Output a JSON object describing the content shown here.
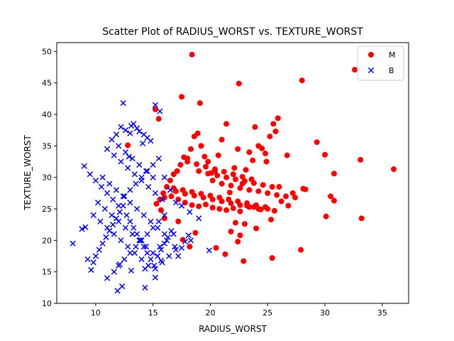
{
  "chart_data": {
    "type": "scatter",
    "title": "Scatter Plot of RADIUS_WORST vs. TEXTURE_WORST",
    "xlabel": "RADIUS_WORST",
    "ylabel": "TEXTURE_WORST",
    "xlim": [
      6.6,
      37.3
    ],
    "ylim": [
      10.0,
      51.4
    ],
    "xticks": [
      10,
      15,
      20,
      25,
      30,
      35
    ],
    "yticks": [
      10,
      15,
      20,
      25,
      30,
      35,
      40,
      45,
      50
    ],
    "grid": false,
    "legend": "top-right",
    "series": [
      {
        "name": "M",
        "marker": "circle",
        "color": "#ff0000",
        "x": [
          18.4,
          28.0,
          32.6,
          22.5,
          17.5,
          19.1,
          12.8,
          15.2,
          15.5,
          33.1,
          33.2,
          36.0,
          29.3,
          30.0,
          30.8,
          30.5,
          30.8,
          30.1,
          28.3,
          27.9,
          28.1,
          27.2,
          26.7,
          26.0,
          25.9,
          25.7,
          25.5,
          25.2,
          24.8,
          24.5,
          24.9,
          24.2,
          23.9,
          23.7,
          23.4,
          23.1,
          22.8,
          22.4,
          22.1,
          21.7,
          21.4,
          21.0,
          20.7,
          20.4,
          20.1,
          19.8,
          19.5,
          19.2,
          18.9,
          18.6,
          18.3,
          18.0,
          17.7,
          17.4,
          17.1,
          16.8,
          16.5,
          16.2,
          15.9,
          15.6,
          15.3,
          16.0,
          16.6,
          17.2,
          17.8,
          18.4,
          19.0,
          19.6,
          20.2,
          20.8,
          21.4,
          22.0,
          22.6,
          23.2,
          23.8,
          24.4,
          25.0,
          25.6,
          26.2,
          26.8,
          20.2,
          21.0,
          21.8,
          22.6,
          23.4,
          24.2,
          25.0,
          25.8,
          26.6,
          27.4,
          19.0,
          19.8,
          20.6,
          21.4,
          22.2,
          23.0,
          23.8,
          24.6,
          25.4,
          18.0,
          18.8,
          19.6,
          20.4,
          21.2,
          22.0,
          22.8,
          23.6,
          17.0,
          17.8,
          18.6,
          19.4,
          20.2,
          21.0,
          21.8,
          22.6,
          23.4,
          24.2,
          16.8,
          17.6,
          18.4,
          19.2,
          20.0,
          20.8,
          21.6,
          22.4,
          23.2,
          24.0,
          24.8,
          22.2,
          21.8,
          22.6,
          22.4,
          21.3,
          20.5,
          18.2,
          18.7,
          17.6,
          17.2,
          16.0,
          15.7,
          22.9,
          25.4,
          25.3,
          24.0,
          23.0
        ],
        "y": [
          49.5,
          45.4,
          47.1,
          44.9,
          42.8,
          41.8,
          35.1,
          40.8,
          39.3,
          32.8,
          23.5,
          31.3,
          35.6,
          33.6,
          30.6,
          27.0,
          26.3,
          23.8,
          28.1,
          18.5,
          28.2,
          27.5,
          33.5,
          28.5,
          39.4,
          37.3,
          38.5,
          36.5,
          33.8,
          34.6,
          32.5,
          35.0,
          38.0,
          32.7,
          34.0,
          31.2,
          29.0,
          34.5,
          31.5,
          27.6,
          38.5,
          36.0,
          33.5,
          31.0,
          30.7,
          32.5,
          33.3,
          35.0,
          37.0,
          36.5,
          34.5,
          33.0,
          33.2,
          32.0,
          31.0,
          30.5,
          29.5,
          28.5,
          27.5,
          26.5,
          25.8,
          26.8,
          27.0,
          26.5,
          26.0,
          25.6,
          25.4,
          25.7,
          25.2,
          25.0,
          24.8,
          25.1,
          24.6,
          25.5,
          25.3,
          24.9,
          25.0,
          24.7,
          26.2,
          25.5,
          29.5,
          29.0,
          28.7,
          28.3,
          28.0,
          27.8,
          27.5,
          27.2,
          27.0,
          26.8,
          31.0,
          30.6,
          30.3,
          30.0,
          29.7,
          29.4,
          29.1,
          28.8,
          28.5,
          32.5,
          32.1,
          31.7,
          31.3,
          30.9,
          30.5,
          30.1,
          29.7,
          27.8,
          27.4,
          27.1,
          26.8,
          26.5,
          26.2,
          25.9,
          25.6,
          25.3,
          25.0,
          28.3,
          28.0,
          27.7,
          27.4,
          27.1,
          26.8,
          26.5,
          26.2,
          25.9,
          25.6,
          25.3,
          22.8,
          21.4,
          20.8,
          19.8,
          17.8,
          18.8,
          19.0,
          21.2,
          20.1,
          23.0,
          23.5,
          24.8,
          16.7,
          17.2,
          23.3,
          21.9,
          22.6
        ]
      },
      {
        "name": "B",
        "marker": "x",
        "color": "#0000ff",
        "x": [
          8.0,
          8.8,
          9.1,
          9.3,
          9.6,
          9.8,
          10.0,
          10.3,
          10.6,
          10.9,
          11.2,
          11.5,
          11.8,
          12.1,
          12.4,
          12.7,
          13.0,
          13.3,
          13.6,
          13.9,
          14.2,
          14.5,
          14.8,
          15.1,
          15.4,
          15.7,
          16.0,
          16.3,
          16.6,
          16.9,
          17.2,
          17.5,
          17.8,
          18.1,
          9.0,
          9.5,
          10.0,
          10.5,
          11.0,
          11.5,
          12.0,
          12.5,
          13.0,
          13.5,
          14.0,
          14.5,
          15.0,
          15.5,
          16.0,
          16.5,
          17.0,
          9.8,
          10.4,
          11.0,
          11.6,
          12.2,
          12.8,
          13.4,
          14.0,
          14.6,
          15.2,
          15.8,
          16.4,
          17.0,
          10.2,
          10.8,
          11.4,
          12.0,
          12.6,
          13.2,
          13.8,
          14.4,
          15.0,
          15.6,
          16.2,
          16.8,
          10.6,
          11.2,
          11.8,
          12.4,
          13.0,
          13.6,
          14.2,
          14.8,
          15.4,
          16.0,
          11.0,
          11.6,
          12.2,
          12.8,
          13.4,
          14.0,
          14.6,
          15.2,
          15.8,
          11.4,
          12.0,
          12.6,
          13.2,
          13.8,
          14.4,
          15.0,
          12.2,
          12.6,
          13.0,
          13.3,
          13.6,
          14.2,
          14.8,
          15.2,
          15.6,
          12.4,
          13.1,
          13.8,
          14.5,
          11.8,
          12.9,
          14.1,
          11.0,
          11.6,
          12.0,
          12.5,
          13.0,
          13.5,
          14.0,
          14.5,
          15.0,
          15.5,
          16.0,
          17.5,
          18.2,
          19.0,
          11.9,
          12.3,
          14.3,
          12.1,
          13.1,
          15.2,
          15.7,
          14.3,
          19.9,
          18.3
        ],
        "y": [
          19.5,
          21.8,
          22.1,
          17.0,
          15.3,
          16.5,
          17.5,
          18.5,
          19.5,
          20.5,
          21.5,
          22.5,
          23.5,
          24.5,
          25.5,
          24.0,
          23.0,
          22.0,
          21.0,
          20.0,
          19.0,
          18.0,
          17.0,
          16.0,
          17.5,
          18.5,
          19.5,
          20.5,
          21.5,
          19.0,
          17.5,
          18.8,
          19.8,
          20.8,
          31.8,
          30.5,
          29.5,
          28.5,
          27.5,
          26.5,
          25.5,
          27.0,
          28.0,
          29.0,
          30.0,
          31.0,
          32.0,
          33.0,
          30.0,
          28.0,
          26.0,
          24.0,
          23.0,
          22.0,
          21.0,
          20.0,
          19.0,
          18.0,
          17.0,
          16.0,
          15.5,
          16.5,
          17.5,
          18.5,
          26.0,
          25.0,
          24.0,
          23.0,
          22.0,
          21.0,
          20.0,
          19.0,
          18.0,
          19.0,
          20.0,
          21.0,
          30.0,
          29.0,
          28.0,
          27.0,
          26.0,
          25.0,
          24.0,
          23.0,
          22.0,
          21.0,
          34.5,
          33.5,
          32.5,
          31.5,
          30.5,
          29.5,
          28.5,
          27.5,
          26.5,
          36.0,
          35.0,
          34.0,
          33.0,
          32.0,
          31.0,
          30.0,
          38.0,
          37.5,
          37.0,
          38.5,
          37.8,
          36.8,
          35.8,
          41.5,
          40.5,
          41.8,
          38.2,
          37.3,
          36.3,
          36.8,
          33.3,
          35.4,
          14.0,
          15.0,
          16.0,
          17.0,
          18.0,
          19.0,
          20.0,
          21.0,
          22.0,
          23.0,
          24.0,
          25.5,
          24.5,
          23.5,
          12.0,
          12.7,
          12.5,
          16.2,
          15.2,
          14.1,
          16.8,
          15.5,
          18.4,
          20.0
        ]
      }
    ]
  }
}
